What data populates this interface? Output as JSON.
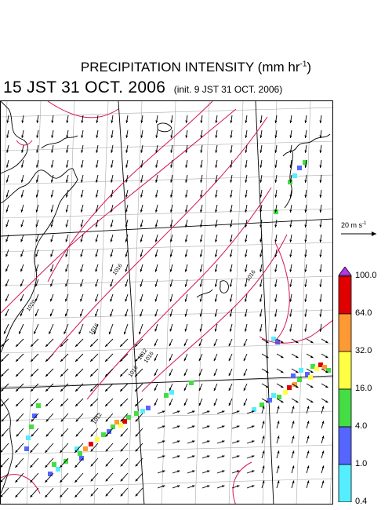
{
  "header": {
    "title_main": "PRECIPITATION INTENSITY (mm hr",
    "title_exp": "-1",
    "title_close": ")",
    "valid_time": "15 JST 31 OCT. 2006",
    "init_time": "(init. 9 JST 31 OCT. 2006)"
  },
  "wind_scale": {
    "label_main": "20 m s",
    "label_exp": "-1"
  },
  "colorbar": {
    "labels": [
      "100.0",
      "64.0",
      "32.0",
      "16.0",
      "4.0",
      "1.0",
      "0.4"
    ],
    "colors": [
      "#e00000",
      "#ff9933",
      "#ffff44",
      "#44dd44",
      "#5566ff",
      "#55eeff"
    ],
    "top_cap_color": "#bb33ee",
    "bottom_cap_color": "#ffffff"
  },
  "isobar_labels": [
    "1020",
    "1016",
    "1016",
    "1016",
    "1012",
    "1016",
    "1016",
    "1012"
  ],
  "colors": {
    "isobar": "#d4145a",
    "coast": "#000000",
    "grid": "#aaaaaa"
  }
}
